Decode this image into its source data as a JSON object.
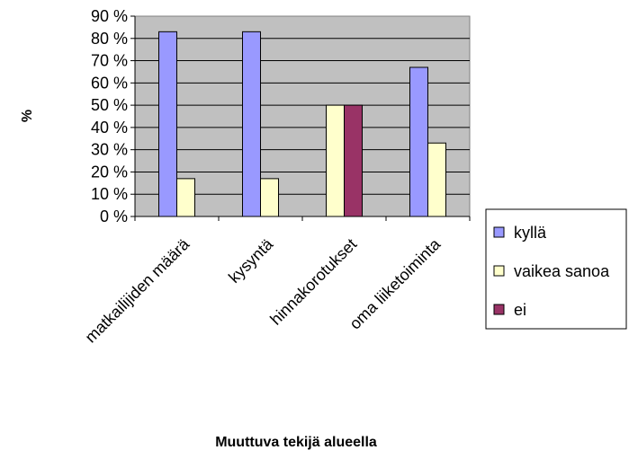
{
  "chart_data": {
    "type": "bar",
    "title": "",
    "xlabel": "Muuttuva tekijä alueella",
    "ylabel": "%",
    "categories": [
      "matkailijiden määrä",
      "kysyntä",
      "hinnakorotukset",
      "oma liiketoiminta"
    ],
    "series": [
      {
        "name": "kyllä",
        "values": [
          83,
          83,
          0,
          67
        ],
        "color": "#9999ff"
      },
      {
        "name": "vaikea sanoa",
        "values": [
          17,
          17,
          50,
          33
        ],
        "color": "#ffffcc"
      },
      {
        "name": "ei",
        "values": [
          0,
          0,
          50,
          0
        ],
        "color": "#993366"
      }
    ],
    "ylim": [
      0,
      90
    ],
    "yticks": [
      0,
      10,
      20,
      30,
      40,
      50,
      60,
      70,
      80,
      90
    ],
    "ytick_labels": [
      "0 %",
      "10 %",
      "20 %",
      "30 %",
      "40 %",
      "50 %",
      "60 %",
      "70 %",
      "80 %",
      "90 %"
    ],
    "grid": true,
    "plot_background": "#c0c0c0",
    "legend_position": "right"
  }
}
